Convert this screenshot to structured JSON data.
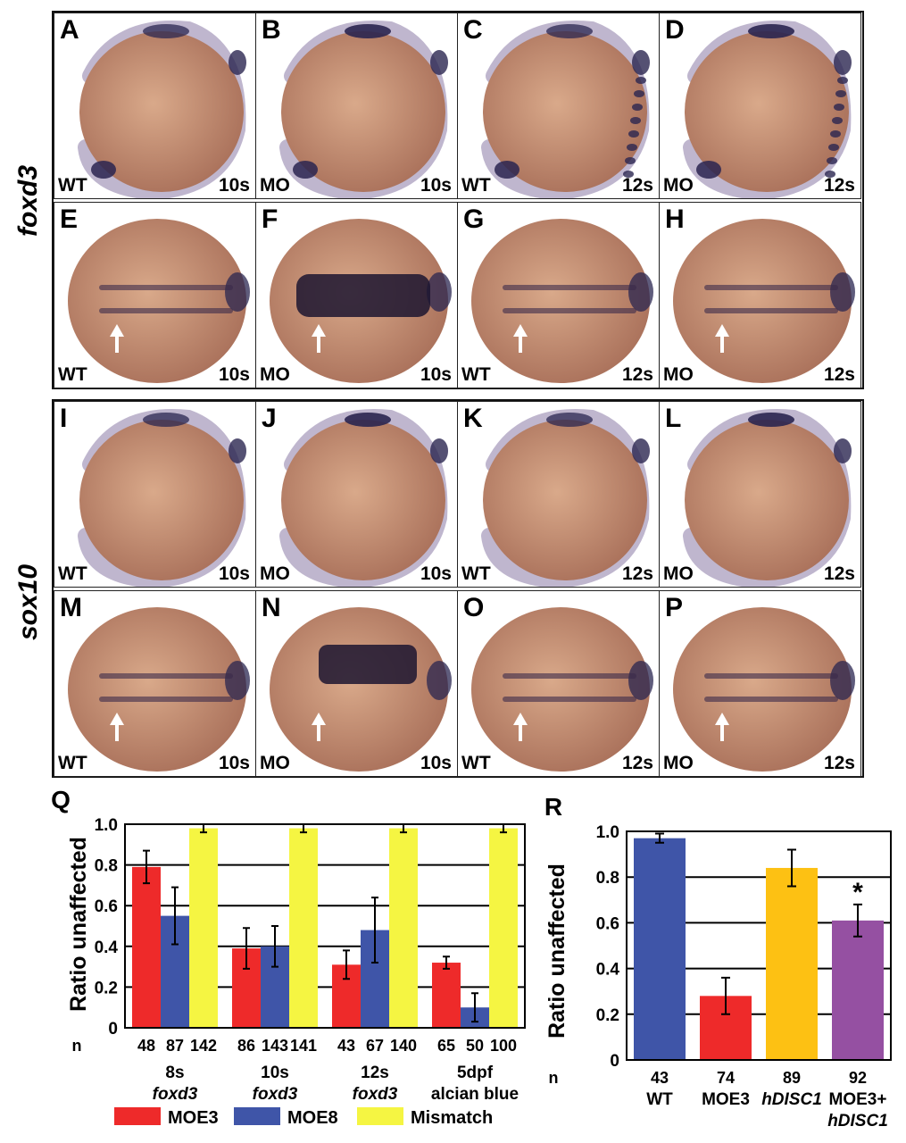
{
  "genes": {
    "top": "foxd3",
    "bottom": "sox10"
  },
  "panels": [
    {
      "letter": "A",
      "cond": "WT",
      "stage": "10s"
    },
    {
      "letter": "B",
      "cond": "MO",
      "stage": "10s"
    },
    {
      "letter": "C",
      "cond": "WT",
      "stage": "12s"
    },
    {
      "letter": "D",
      "cond": "MO",
      "stage": "12s"
    },
    {
      "letter": "E",
      "cond": "WT",
      "stage": "10s"
    },
    {
      "letter": "F",
      "cond": "MO",
      "stage": "10s"
    },
    {
      "letter": "G",
      "cond": "WT",
      "stage": "12s"
    },
    {
      "letter": "H",
      "cond": "MO",
      "stage": "12s"
    },
    {
      "letter": "I",
      "cond": "WT",
      "stage": "10s"
    },
    {
      "letter": "J",
      "cond": "MO",
      "stage": "10s"
    },
    {
      "letter": "K",
      "cond": "WT",
      "stage": "12s"
    },
    {
      "letter": "L",
      "cond": "MO",
      "stage": "12s"
    },
    {
      "letter": "M",
      "cond": "WT",
      "stage": "10s"
    },
    {
      "letter": "N",
      "cond": "MO",
      "stage": "10s"
    },
    {
      "letter": "O",
      "cond": "WT",
      "stage": "12s"
    },
    {
      "letter": "P",
      "cond": "MO",
      "stage": "12s"
    }
  ],
  "chart_data": [
    {
      "panel": "Q",
      "type": "bar",
      "ylabel": "Ratio unaffected",
      "ylim": [
        0,
        1.0
      ],
      "yticks": [
        "0",
        "0.2",
        "0.4",
        "0.6",
        "0.8",
        "1.0"
      ],
      "grid": true,
      "n_label": "n",
      "groups": [
        {
          "line1": "8s",
          "line2": "foxd3",
          "line2_italic": true
        },
        {
          "line1": "10s",
          "line2": "foxd3",
          "line2_italic": true
        },
        {
          "line1": "12s",
          "line2": "foxd3",
          "line2_italic": true
        },
        {
          "line1": "5dpf",
          "line2": "alcian blue",
          "line2_italic": false
        }
      ],
      "series": [
        {
          "name": "MOE3",
          "color": "#ee2a2a",
          "values": [
            0.79,
            0.39,
            0.31,
            0.32
          ],
          "errors": [
            0.08,
            0.1,
            0.07,
            0.03
          ],
          "n": [
            "48",
            "86",
            "43",
            "65"
          ]
        },
        {
          "name": "MOE8",
          "color": "#3f55a8",
          "values": [
            0.55,
            0.4,
            0.48,
            0.1
          ],
          "errors": [
            0.14,
            0.1,
            0.16,
            0.07
          ],
          "n": [
            "87",
            "143",
            "67",
            "50"
          ]
        },
        {
          "name": "Mismatch",
          "color": "#f5f542",
          "values": [
            0.98,
            0.98,
            0.98,
            0.98
          ],
          "errors": [
            0.02,
            0.02,
            0.02,
            0.02
          ],
          "n": [
            "142",
            "141",
            "140",
            "100"
          ]
        }
      ]
    },
    {
      "panel": "R",
      "type": "bar",
      "ylabel": "Ratio unaffected",
      "ylim": [
        0,
        1.0
      ],
      "yticks": [
        "0",
        "0.2",
        "0.4",
        "0.6",
        "0.8",
        "1.0"
      ],
      "grid": true,
      "n_label": "n",
      "bars": [
        {
          "n": "43",
          "line1": "WT",
          "line2": "",
          "italic": false,
          "value": 0.97,
          "error": 0.02,
          "color": "#3f55a8",
          "star": ""
        },
        {
          "n": "74",
          "line1": "MOE3",
          "line2": "",
          "italic": false,
          "value": 0.28,
          "error": 0.08,
          "color": "#ee2a2a",
          "star": ""
        },
        {
          "n": "89",
          "line1": "hDISC1",
          "line2": "",
          "italic": true,
          "value": 0.84,
          "error": 0.08,
          "color": "#fdc113",
          "star": ""
        },
        {
          "n": "92",
          "line1": "MOE3+",
          "line2": "hDISC1",
          "italic": false,
          "value": 0.61,
          "error": 0.07,
          "color": "#9550a2",
          "star": "*"
        }
      ]
    }
  ]
}
